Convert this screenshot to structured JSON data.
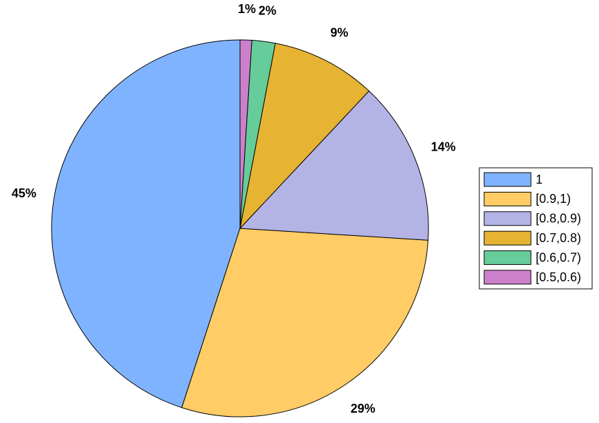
{
  "chart_data": {
    "type": "pie",
    "categories": [
      "1",
      "[0.9,1)",
      "[0.8,0.9)",
      "[0.7,0.8)",
      "[0.6,0.7)",
      "[0.5,0.6)"
    ],
    "values": [
      45,
      29,
      14,
      9,
      2,
      1
    ],
    "value_labels": [
      "45%",
      "29%",
      "14%",
      "9%",
      "2%",
      "1%"
    ],
    "colors": [
      "#80b3ff",
      "#ffcc66",
      "#b3b3e6",
      "#e6b333",
      "#66cc99",
      "#cc80cc"
    ],
    "legend": "right"
  }
}
